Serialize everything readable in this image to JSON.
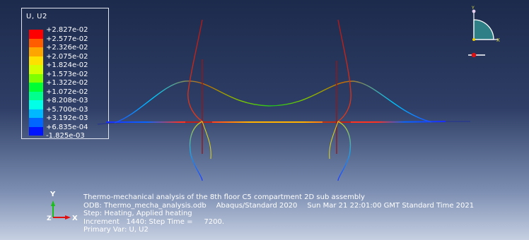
{
  "legend": {
    "title": "U, U2",
    "levels": [
      {
        "label": "+2.827e-02",
        "color": "#ff0000"
      },
      {
        "label": "+2.577e-02",
        "color": "#ff5c00"
      },
      {
        "label": "+2.326e-02",
        "color": "#ffa500"
      },
      {
        "label": "+2.075e-02",
        "color": "#ffe100"
      },
      {
        "label": "+1.824e-02",
        "color": "#d4ff00"
      },
      {
        "label": "+1.573e-02",
        "color": "#7fff00"
      },
      {
        "label": "+1.322e-02",
        "color": "#00ff33"
      },
      {
        "label": "+1.072e-02",
        "color": "#00ff8c"
      },
      {
        "label": "+8.208e-03",
        "color": "#00ffe6"
      },
      {
        "label": "+5.700e-03",
        "color": "#00b8ff"
      },
      {
        "label": "+3.192e-03",
        "color": "#0066ff"
      },
      {
        "label": "+6.835e-04",
        "color": "#0014ff"
      },
      {
        "label": "-1.825e-03",
        "color": ""
      }
    ]
  },
  "triad": {
    "x_label": "X",
    "y_label": "Y"
  },
  "global_axes": {
    "x_label": "X",
    "y_label": "Y",
    "z_label": "Z"
  },
  "info": {
    "title": "Thermo-mechanical analysis of the 8th floor C5 compartment 2D sub assembly",
    "odb": "ODB: Thermo_mecha_analysis.odb",
    "solver": "Abaqus/Standard 2020",
    "timestamp": "Sun Mar 21 22:01:00 GMT Standard Time 2021",
    "step": "Step: Heating, Applied heating",
    "increment": "Increment   1440: Step Time =     7200.",
    "primary_var": "Primary Var: U, U2"
  },
  "colors": {
    "beam_red": "#ff2a1a",
    "column_dark_red": "#a01818",
    "axis_red": "#e01010",
    "axis_green": "#19c019",
    "triad_fill": "#2f7f86"
  }
}
